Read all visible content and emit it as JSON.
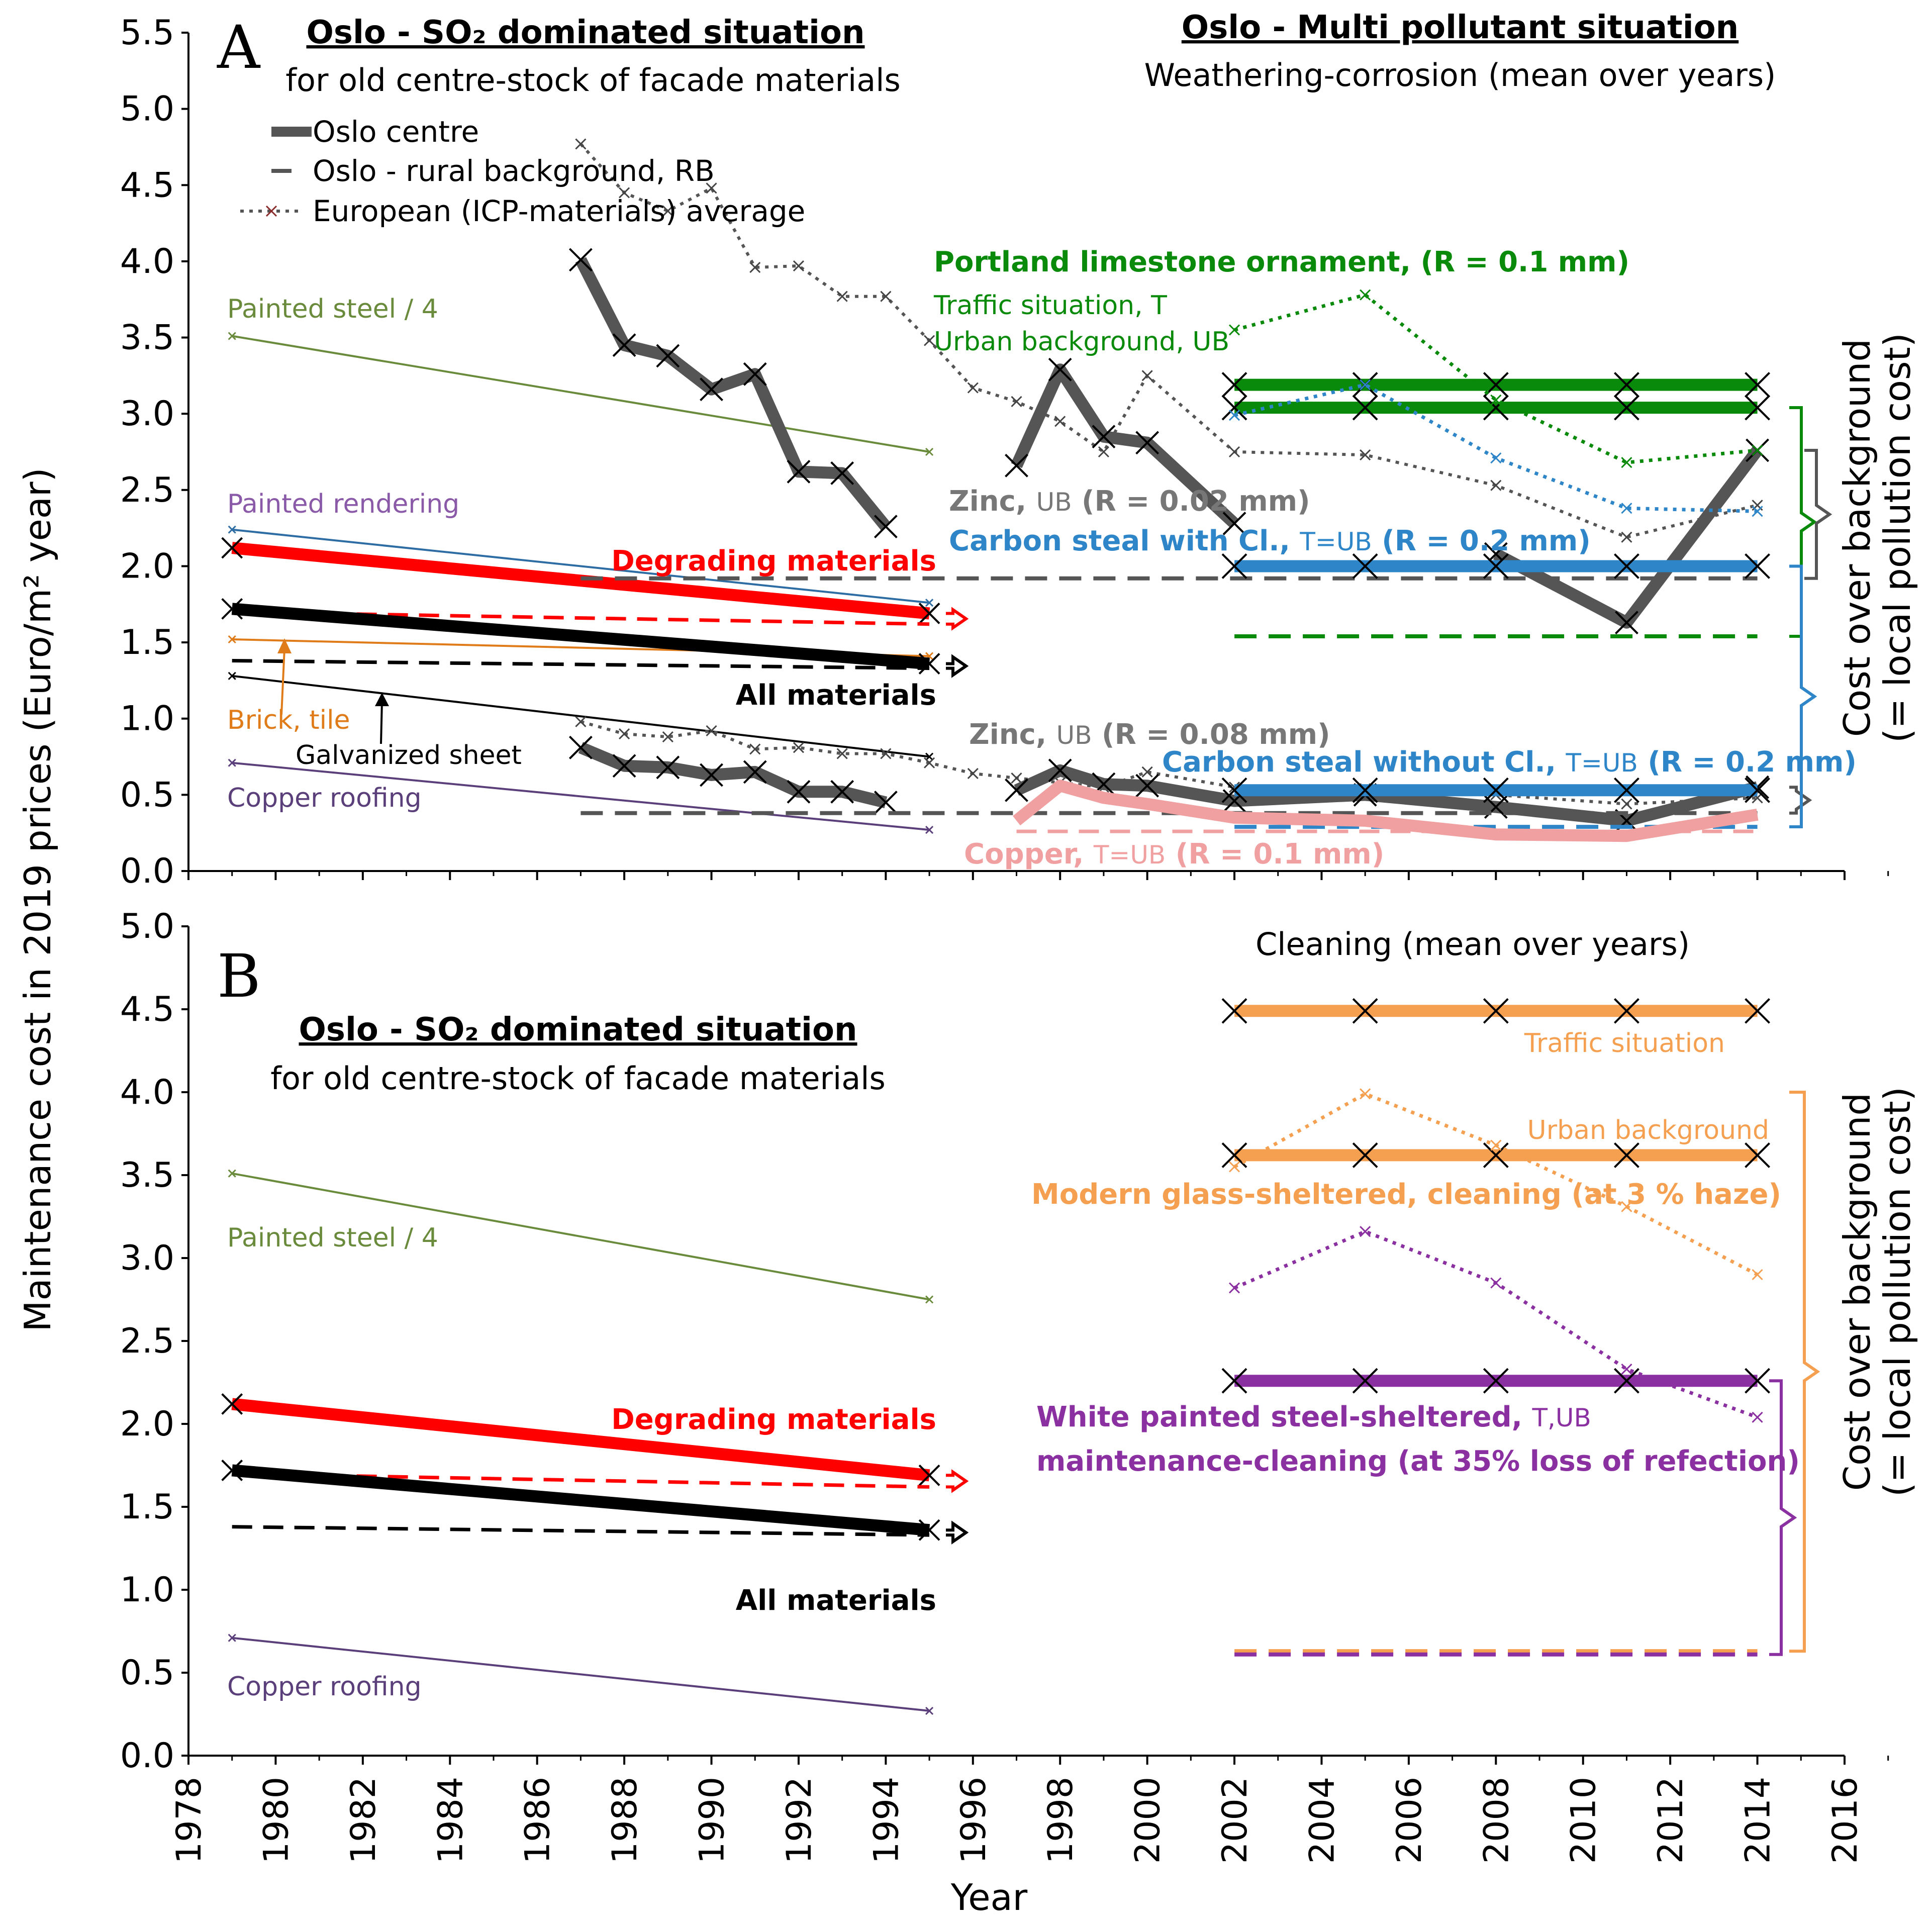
{
  "chart_data": [
    {
      "panel": "A",
      "type": "line",
      "title": "Oslo - SO₂ dominated situation",
      "subtitle": "for old centre-stock of facade materials",
      "right_title": "Oslo - Multi pollutant situation",
      "right_subtitle": "Weathering-corrosion (mean over years)",
      "ylim": [
        0,
        5.5
      ],
      "xlim": [
        1978,
        2016
      ],
      "yticks": [
        "0.0",
        "0.5",
        "1.0",
        "1.5",
        "2.0",
        "2.5",
        "3.0",
        "3.5",
        "4.0",
        "4.5",
        "5.0",
        "5.5"
      ],
      "legend": [
        "Oslo centre",
        "Oslo - rural background, RB",
        "European (ICP-materials) average"
      ],
      "series": [
        {
          "name": "Painted steel / 4",
          "x": [
            1979,
            1995
          ],
          "y": [
            3.51,
            2.75
          ],
          "color": "#6a8a3c",
          "style": "thin"
        },
        {
          "name": "Painted rendering",
          "x": [
            1979,
            1995
          ],
          "y": [
            2.24,
            1.76
          ],
          "color": "#2e6da4",
          "style": "thin"
        },
        {
          "name": "Brick, tile",
          "x": [
            1979,
            1995
          ],
          "y": [
            1.52,
            1.41
          ],
          "color": "#e07b1a",
          "style": "thin"
        },
        {
          "name": "Galvanized sheet",
          "x": [
            1979,
            1995
          ],
          "y": [
            1.28,
            0.75
          ],
          "color": "#000000",
          "style": "thin"
        },
        {
          "name": "Copper roofing",
          "x": [
            1979,
            1995
          ],
          "y": [
            0.71,
            0.27
          ],
          "color": "#5a3f7a",
          "style": "thin"
        },
        {
          "name": "Degrading materials",
          "x": [
            1979,
            1995
          ],
          "y": [
            2.12,
            1.69
          ],
          "color": "#ff0000",
          "style": "thick"
        },
        {
          "name": "Degrading materials (RB)",
          "x": [
            1979,
            1995
          ],
          "y": [
            1.7,
            1.62
          ],
          "color": "#ff0000",
          "style": "dash"
        },
        {
          "name": "All materials",
          "x": [
            1979,
            1995
          ],
          "y": [
            1.72,
            1.36
          ],
          "color": "#000000",
          "style": "thick"
        },
        {
          "name": "All materials (RB)",
          "x": [
            1979,
            1995
          ],
          "y": [
            1.38,
            1.33
          ],
          "color": "#000000",
          "style": "dash"
        },
        {
          "name": "European average - Zinc 0.02",
          "x": [
            1987,
            1988,
            1989,
            1990,
            1991,
            1992,
            1993,
            1994,
            1995,
            1996,
            1997,
            1998,
            1999,
            2000,
            2002,
            2005,
            2008,
            2011,
            2014
          ],
          "y": [
            4.77,
            4.45,
            4.33,
            4.48,
            3.96,
            3.97,
            3.77,
            3.77,
            3.48,
            3.17,
            3.08,
            2.95,
            2.75,
            3.25,
            2.75,
            2.73,
            2.53,
            2.19,
            2.4
          ],
          "color": "#555555",
          "style": "dot"
        },
        {
          "name": "Oslo centre - Zinc 0.02",
          "x": [
            1987,
            1988,
            1989,
            1990,
            1991,
            1992,
            1993,
            1994
          ],
          "y": [
            4.01,
            3.45,
            3.38,
            3.16,
            3.26,
            2.62,
            2.61,
            2.26
          ],
          "color": "#555555",
          "style": "gray"
        },
        {
          "name": "Oslo centre - Zinc 0.02 (cont.)",
          "x": [
            1997,
            1998,
            1999,
            2000,
            2002
          ],
          "y": [
            2.66,
            3.29,
            2.85,
            2.81,
            2.28
          ],
          "color": "#555555",
          "style": "gray"
        },
        {
          "name": "Oslo centre - Zinc 0.02 (late)",
          "x": [
            2008,
            2011,
            2014
          ],
          "y": [
            2.08,
            1.63,
            2.76
          ],
          "color": "#555555",
          "style": "gray"
        },
        {
          "name": "Zinc RB 0.02",
          "x": [
            1987,
            2014
          ],
          "y": [
            1.92,
            1.92
          ],
          "color": "#555555",
          "style": "dashgray"
        },
        {
          "name": "European average - Zinc 0.08",
          "x": [
            1987,
            1988,
            1989,
            1990,
            1991,
            1992,
            1993,
            1994,
            1995,
            1996,
            1997,
            1998,
            1999,
            2000,
            2002,
            2005,
            2008,
            2011,
            2014
          ],
          "y": [
            0.98,
            0.9,
            0.88,
            0.92,
            0.8,
            0.81,
            0.77,
            0.77,
            0.71,
            0.64,
            0.61,
            0.58,
            0.55,
            0.65,
            0.55,
            0.54,
            0.5,
            0.44,
            0.48
          ],
          "color": "#555555",
          "style": "dot"
        },
        {
          "name": "Oslo centre - Zinc 0.08",
          "x": [
            1987,
            1988,
            1989,
            1990,
            1991,
            1992,
            1993,
            1994
          ],
          "y": [
            0.81,
            0.69,
            0.68,
            0.63,
            0.65,
            0.52,
            0.52,
            0.45
          ],
          "color": "#555555",
          "style": "gray"
        },
        {
          "name": "Oslo centre - Zinc 0.08 (cont.)",
          "x": [
            1997,
            1998,
            1999,
            2000,
            2002,
            2005,
            2008,
            2011,
            2014
          ],
          "y": [
            0.53,
            0.66,
            0.57,
            0.56,
            0.46,
            0.5,
            0.42,
            0.33,
            0.55
          ],
          "color": "#555555",
          "style": "gray"
        },
        {
          "name": "Zinc RB 0.08",
          "x": [
            1987,
            2014
          ],
          "y": [
            0.38,
            0.38
          ],
          "color": "#555555",
          "style": "dashgray"
        },
        {
          "name": "Portland limestone T",
          "x": [
            2002,
            2005,
            2008,
            2011,
            2014
          ],
          "y": [
            3.19,
            3.19,
            3.19,
            3.19,
            3.19
          ],
          "color": "#0a8a0a",
          "style": "thickx"
        },
        {
          "name": "Portland limestone UB",
          "x": [
            2002,
            2005,
            2008,
            2011,
            2014
          ],
          "y": [
            3.04,
            3.04,
            3.04,
            3.04,
            3.04
          ],
          "color": "#0a8a0a",
          "style": "thickx"
        },
        {
          "name": "Portland limestone ICP",
          "x": [
            2002,
            2005,
            2008,
            2011,
            2014
          ],
          "y": [
            3.55,
            3.78,
            3.09,
            2.68,
            2.76
          ],
          "color": "#0a8a0a",
          "style": "dotc"
        },
        {
          "name": "Portland limestone RB",
          "x": [
            2002,
            2014
          ],
          "y": [
            1.54,
            1.54
          ],
          "color": "#0a8a0a",
          "style": "dashc"
        },
        {
          "name": "Carbon steel with Cl.",
          "x": [
            2002,
            2005,
            2008,
            2011,
            2014
          ],
          "y": [
            2.0,
            2.0,
            2.0,
            2.0,
            2.0
          ],
          "color": "#2e86c8",
          "style": "thickx"
        },
        {
          "name": "Carbon steel with Cl. ICP",
          "x": [
            2002,
            2005,
            2008,
            2011,
            2014
          ],
          "y": [
            2.99,
            3.19,
            2.71,
            2.38,
            2.36
          ],
          "color": "#2e86c8",
          "style": "dotc"
        },
        {
          "name": "Carbon steel without Cl.",
          "x": [
            2002,
            2005,
            2008,
            2011,
            2014
          ],
          "y": [
            0.53,
            0.53,
            0.53,
            0.53,
            0.53
          ],
          "color": "#2e86c8",
          "style": "thickx"
        },
        {
          "name": "Carbon steel RB",
          "x": [
            2002,
            2014
          ],
          "y": [
            0.29,
            0.29
          ],
          "color": "#2e86c8",
          "style": "dashc"
        },
        {
          "name": "Copper T=UB",
          "x": [
            1997,
            1998,
            1999,
            2000,
            2002,
            2005,
            2008,
            2011,
            2014
          ],
          "y": [
            0.33,
            0.56,
            0.48,
            0.44,
            0.35,
            0.33,
            0.24,
            0.23,
            0.37
          ],
          "color": "#f0a0a0",
          "style": "pinkthick"
        },
        {
          "name": "Copper RB",
          "x": [
            1997,
            2014
          ],
          "y": [
            0.26,
            0.26
          ],
          "color": "#f0a0a0",
          "style": "dashpink"
        }
      ],
      "labels": {
        "painted_steel": "Painted steel / 4",
        "painted_rendering": "Painted rendering",
        "degrading": "Degrading materials",
        "brick": "Brick, tile",
        "galvanized": "Galvanized sheet",
        "copper_roofing": "Copper roofing",
        "all_materials": "All materials",
        "portland": "Portland limestone ornament, (R = 0.1 mm)",
        "traffic": "Traffic situation, T",
        "urban": "Urban background, UB",
        "zinc1_a": "Zinc, ",
        "zinc1_b": "UB",
        "zinc1_c": " (R = 0.02 mm)",
        "steel_cl_a": "Carbon steal with Cl., ",
        "steel_cl_b": "T=UB",
        "steel_cl_c": " (R = 0.2 mm)",
        "zinc2_a": "Zinc, ",
        "zinc2_b": "UB",
        "zinc2_c": " (R = 0.08 mm)",
        "steel_nocl_a": "Carbon steal without Cl., ",
        "steel_nocl_b": "T=UB",
        "steel_nocl_c": " (R = 0.2 mm)",
        "copper_a": "Copper, ",
        "copper_b": "T=UB",
        "copper_c": " (R = 0.1 mm)"
      }
    },
    {
      "panel": "B",
      "type": "line",
      "title": "Oslo - SO₂ dominated situation",
      "subtitle": "for old centre-stock of facade materials",
      "right_subtitle": "Cleaning (mean over years)",
      "ylim": [
        0,
        5.0
      ],
      "xlim": [
        1978,
        2016
      ],
      "yticks": [
        "0.0",
        "0.5",
        "1.0",
        "1.5",
        "2.0",
        "2.5",
        "3.0",
        "3.5",
        "4.0",
        "4.5",
        "5.0"
      ],
      "xticks": [
        "1978",
        "1980",
        "1982",
        "1984",
        "1986",
        "1988",
        "1990",
        "1992",
        "1994",
        "1996",
        "1998",
        "2000",
        "2002",
        "2004",
        "2006",
        "2008",
        "2010",
        "2012",
        "2014",
        "2016"
      ],
      "xlabel": "Year",
      "series": [
        {
          "name": "Painted steel / 4",
          "x": [
            1979,
            1995
          ],
          "y": [
            3.51,
            2.75
          ],
          "color": "#6a8a3c",
          "style": "thin"
        },
        {
          "name": "Copper roofing",
          "x": [
            1979,
            1995
          ],
          "y": [
            0.71,
            0.27
          ],
          "color": "#5a3f7a",
          "style": "thin"
        },
        {
          "name": "Degrading materials",
          "x": [
            1979,
            1995
          ],
          "y": [
            2.12,
            1.69
          ],
          "color": "#ff0000",
          "style": "thick"
        },
        {
          "name": "Degrading materials (RB)",
          "x": [
            1979,
            1995
          ],
          "y": [
            1.7,
            1.62
          ],
          "color": "#ff0000",
          "style": "dash"
        },
        {
          "name": "All materials",
          "x": [
            1979,
            1995
          ],
          "y": [
            1.72,
            1.36
          ],
          "color": "#000000",
          "style": "thick"
        },
        {
          "name": "All materials (RB)",
          "x": [
            1979,
            1995
          ],
          "y": [
            1.38,
            1.33
          ],
          "color": "#000000",
          "style": "dash"
        },
        {
          "name": "Traffic situation",
          "x": [
            2002,
            2005,
            2008,
            2011,
            2014
          ],
          "y": [
            4.49,
            4.49,
            4.49,
            4.49,
            4.49
          ],
          "color": "#f5a050",
          "style": "thickx"
        },
        {
          "name": "Urban background",
          "x": [
            2002,
            2005,
            2008,
            2011,
            2014
          ],
          "y": [
            3.62,
            3.62,
            3.62,
            3.62,
            3.62
          ],
          "color": "#f5a050",
          "style": "thickx"
        },
        {
          "name": "Glass ICP",
          "x": [
            2002,
            2005,
            2008,
            2011,
            2014
          ],
          "y": [
            3.55,
            3.99,
            3.68,
            3.31,
            2.9
          ],
          "color": "#f5a050",
          "style": "dotc"
        },
        {
          "name": "Glass RB",
          "x": [
            2002,
            2014
          ],
          "y": [
            0.63,
            0.63
          ],
          "color": "#f5a050",
          "style": "dashc"
        },
        {
          "name": "White painted steel",
          "x": [
            2002,
            2005,
            2008,
            2011,
            2014
          ],
          "y": [
            2.26,
            2.26,
            2.26,
            2.26,
            2.26
          ],
          "color": "#8a30a0",
          "style": "thickx"
        },
        {
          "name": "White painted steel ICP",
          "x": [
            2002,
            2005,
            2008,
            2011,
            2014
          ],
          "y": [
            2.82,
            3.16,
            2.85,
            2.33,
            2.04
          ],
          "color": "#8a30a0",
          "style": "dotc"
        },
        {
          "name": "White painted steel RB",
          "x": [
            2002,
            2014
          ],
          "y": [
            0.61,
            0.61
          ],
          "color": "#8a30a0",
          "style": "dashc"
        }
      ],
      "labels": {
        "painted_steel": "Painted steel / 4",
        "degrading": "Degrading materials",
        "all_materials": "All materials",
        "copper_roofing": "Copper roofing",
        "traffic": "Traffic situation",
        "urban": "Urban background",
        "glass": "Modern glass-sheltered, cleaning (at 3 % haze)",
        "white_a": "White painted steel-sheltered, ",
        "white_b": "T,UB",
        "white_2": "maintenance-cleaning (at 35% loss of refection)"
      }
    }
  ],
  "ylabel": "Maintenance cost in 2019 prices (Euro/m² year)",
  "right_label_line1": "Cost over background",
  "right_label_line2": "(= local pollution cost)"
}
